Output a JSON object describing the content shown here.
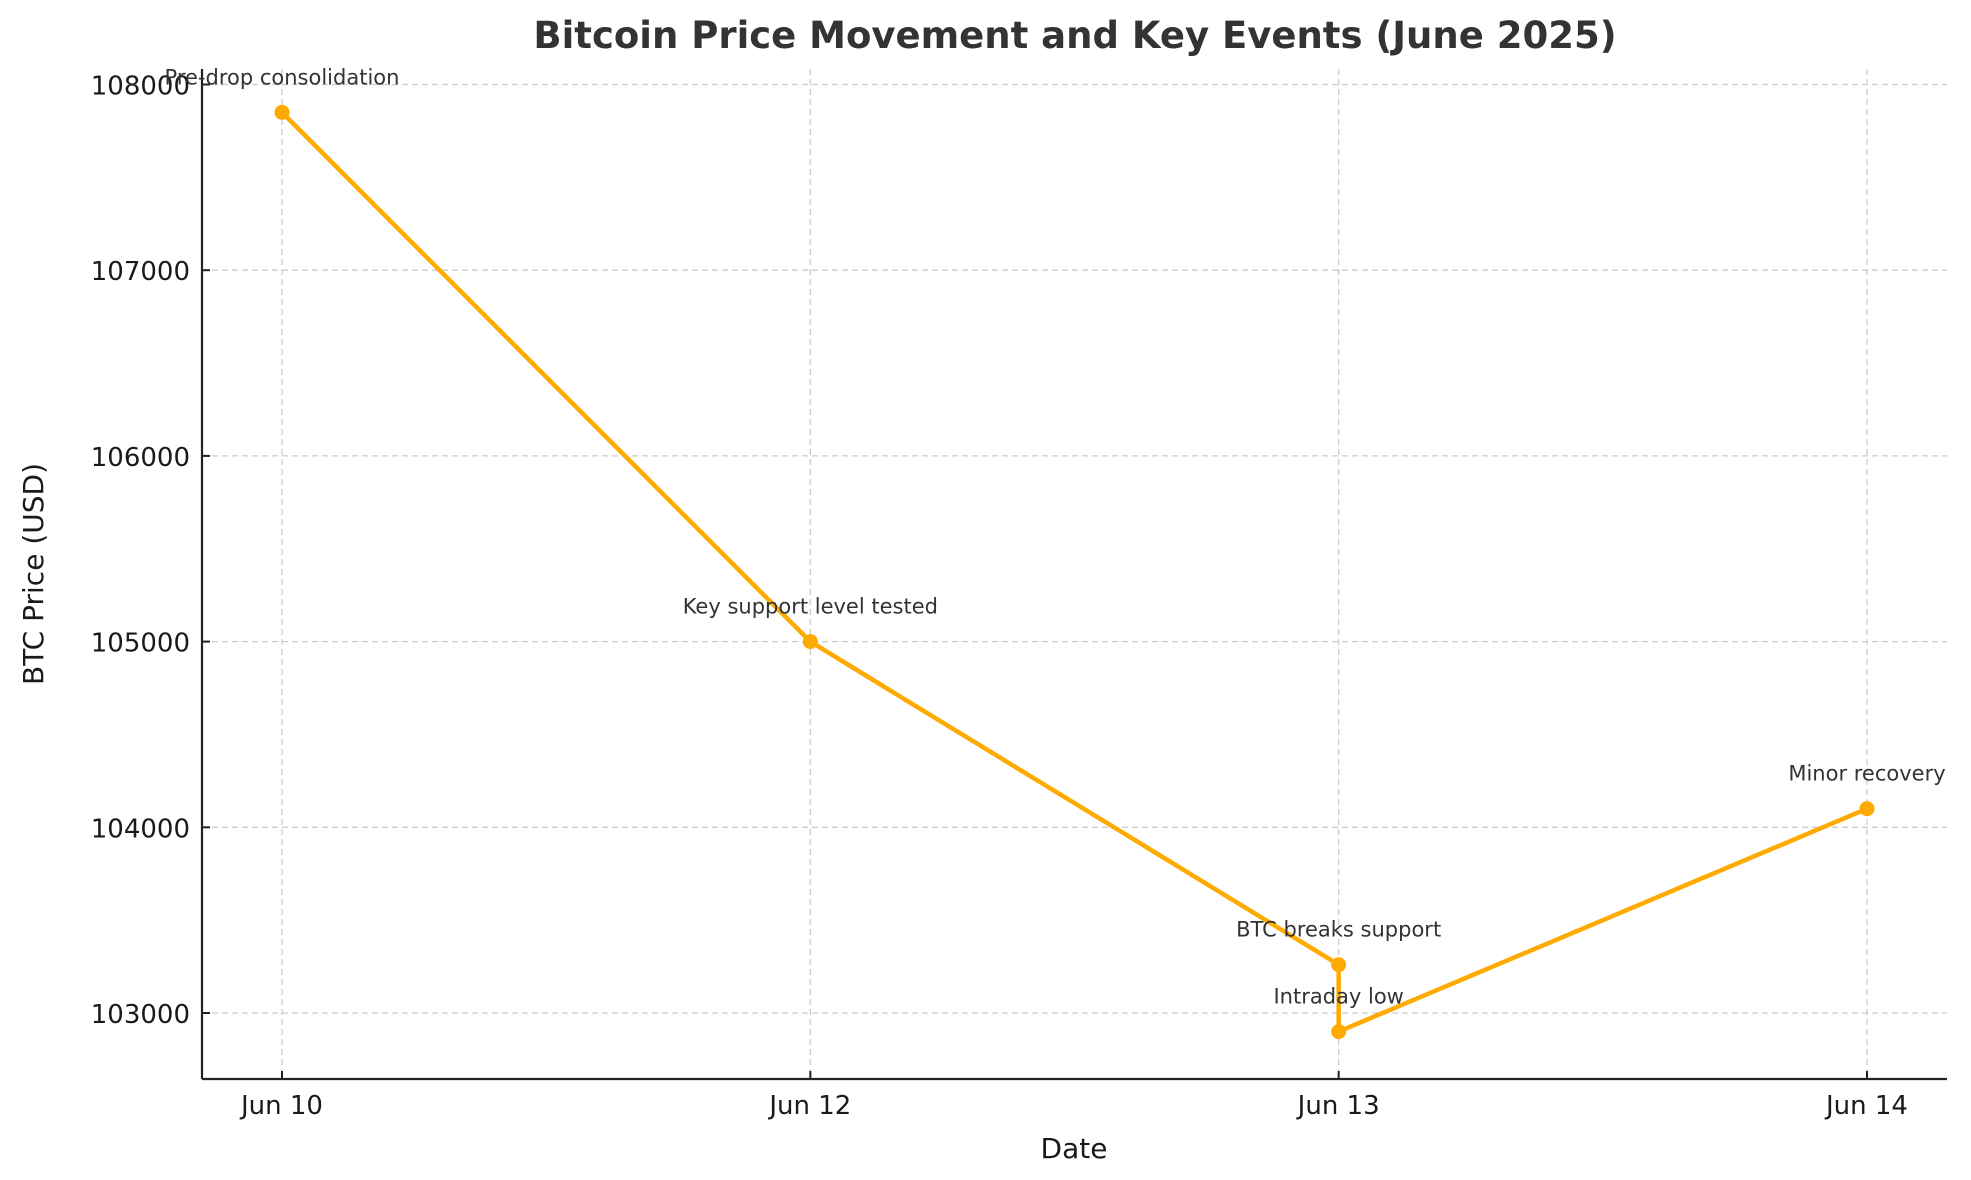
{
  "chart_data": {
    "type": "line",
    "title": "Bitcoin Price Movement and Key Events (June 2025)",
    "xlabel": "Date",
    "ylabel": "BTC Price (USD)",
    "categories": [
      "Jun 10",
      "Jun 12",
      "Jun 13",
      "Jun 14"
    ],
    "x": [
      "Jun 10",
      "Jun 12",
      "Jun 13",
      "Jun 13",
      "Jun 14"
    ],
    "values": [
      107850,
      105000,
      103260,
      102900,
      104100
    ],
    "annotations": [
      "Pre-drop consolidation",
      "Key support level tested",
      "BTC breaks support",
      "Intraday low",
      "Minor recovery"
    ],
    "yticks": [
      103000,
      104000,
      105000,
      106000,
      107000,
      108000
    ],
    "ylim": [
      102650,
      108100
    ],
    "grid": true,
    "color": "#FFAA00"
  }
}
